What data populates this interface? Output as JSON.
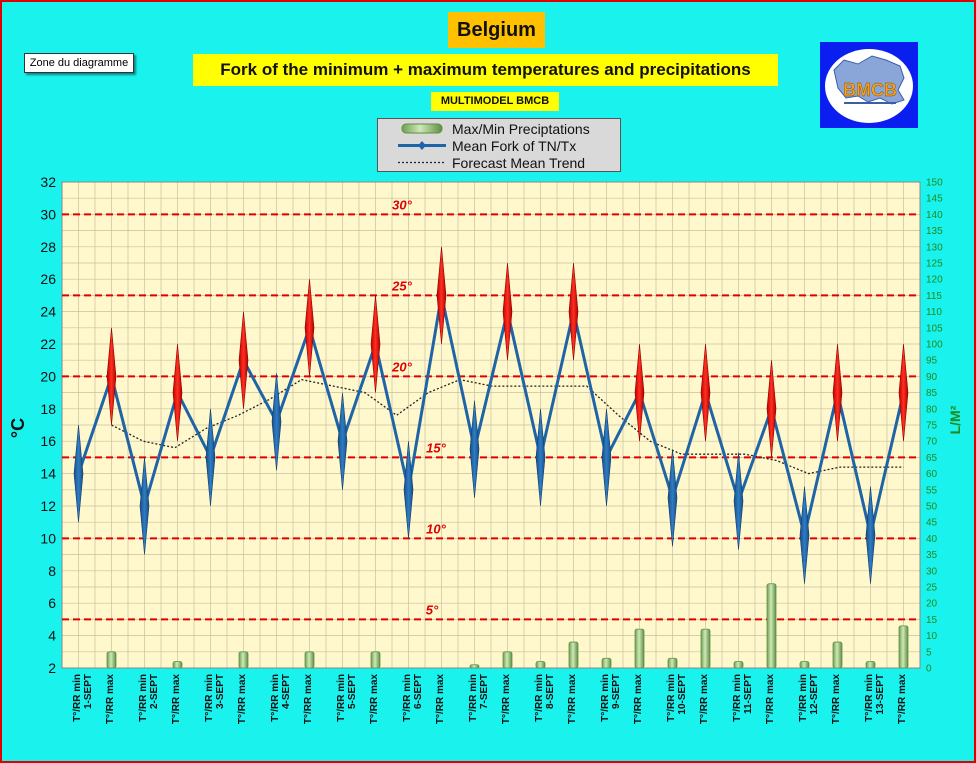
{
  "header": {
    "title": "Belgium",
    "subtitle": "Fork of the minimum + maximum temperatures and precipitations",
    "model": "MULTIMODEL BMCB",
    "zone_label": "Zone du diagramme"
  },
  "logo": {
    "text": "BMCB",
    "icon": "belgium-map-logo-icon",
    "color": "#f5a020"
  },
  "legend": {
    "items": [
      {
        "label": "Max/Min Preciptations",
        "symbol": "green-bar-icon"
      },
      {
        "label": "Mean Fork of TN/Tx",
        "symbol": "blue-line-diamond-icon"
      },
      {
        "label": "Forecast Mean Trend",
        "symbol": "dotted-line-icon"
      }
    ]
  },
  "colors": {
    "background": "#1af2ee",
    "plot_background": "#fff8cc",
    "frame_border": "#e00000",
    "temp_line": "#1f64a6",
    "min_marker": "#1f64a6",
    "max_marker": "#e01010",
    "precip_bar": "#a9d18e",
    "threshold_line": "#e00000",
    "threshold_label": "#e00000",
    "right_axis_label": "#1e8a1e"
  },
  "chart_data": {
    "type": "line",
    "ylabel": "°C",
    "y2label": "L/M²",
    "ylim": [
      2,
      32
    ],
    "yticks": [
      2,
      4,
      6,
      8,
      10,
      12,
      14,
      16,
      18,
      20,
      22,
      24,
      26,
      28,
      30,
      32
    ],
    "y2lim": [
      0,
      150
    ],
    "y2ticks": [
      0,
      5,
      10,
      15,
      20,
      25,
      30,
      35,
      40,
      45,
      50,
      55,
      60,
      65,
      70,
      75,
      80,
      85,
      90,
      95,
      100,
      105,
      110,
      115,
      120,
      125,
      130,
      135,
      140,
      145,
      150
    ],
    "grid": true,
    "categories": [
      {
        "main": "T°/RR min",
        "day": "1-SEPT"
      },
      {
        "main": "T°/RR max",
        "day": ""
      },
      {
        "main": "T°/RR min",
        "day": "2-SEPT"
      },
      {
        "main": "T°/RR max",
        "day": ""
      },
      {
        "main": "T°/RR min",
        "day": "3-SEPT"
      },
      {
        "main": "T°/RR max",
        "day": ""
      },
      {
        "main": "T°/RR min",
        "day": "4-SEPT"
      },
      {
        "main": "T°/RR max",
        "day": ""
      },
      {
        "main": "T°/RR min",
        "day": "5-SEPT"
      },
      {
        "main": "T°/RR max",
        "day": ""
      },
      {
        "main": "T°/RR min",
        "day": "6-SEPT"
      },
      {
        "main": "T°/RR max",
        "day": ""
      },
      {
        "main": "T°/RR min",
        "day": "7-SEPT"
      },
      {
        "main": "T°/RR max",
        "day": ""
      },
      {
        "main": "T°/RR min",
        "day": "8-SEPT"
      },
      {
        "main": "T°/RR max",
        "day": ""
      },
      {
        "main": "T°/RR min",
        "day": "9-SEPT"
      },
      {
        "main": "T°/RR max",
        "day": ""
      },
      {
        "main": "T°/RR min",
        "day": "10-SEPT"
      },
      {
        "main": "T°/RR max",
        "day": ""
      },
      {
        "main": "T°/RR min",
        "day": "11-SEPT"
      },
      {
        "main": "T°/RR max",
        "day": ""
      },
      {
        "main": "T°/RR min",
        "day": "12-SEPT"
      },
      {
        "main": "T°/RR max",
        "day": ""
      },
      {
        "main": "T°/RR min",
        "day": "13-SEPT"
      },
      {
        "main": "T°/RR max",
        "day": ""
      }
    ],
    "thresholds": [
      {
        "value": 30,
        "label": "30°"
      },
      {
        "value": 25,
        "label": "25°"
      },
      {
        "value": 20,
        "label": "20°"
      },
      {
        "value": 15,
        "label": "15°"
      },
      {
        "value": 10,
        "label": "10°"
      },
      {
        "value": 5,
        "label": "5°"
      }
    ],
    "series": [
      {
        "name": "Mean Fork of TN/Tx",
        "type": "line",
        "values": [
          14,
          20,
          12,
          19,
          15,
          21,
          17.2,
          23,
          16,
          22,
          13,
          25,
          15.5,
          24,
          15,
          24,
          15,
          19,
          12.5,
          19,
          12.3,
          18,
          10.2,
          19,
          10.2,
          19
        ]
      },
      {
        "name": "Forecast Mean Trend",
        "type": "line",
        "x_start": 1,
        "values": [
          17,
          16,
          15.6,
          16.8,
          17.6,
          18.6,
          19.8,
          19.4,
          19,
          17.6,
          19,
          19.8,
          19.4,
          19.4,
          19.4,
          19.4,
          17.6,
          16,
          15.2,
          15.2,
          15.2,
          14.8,
          14,
          14.4,
          14.4,
          14.4
        ]
      },
      {
        "name": "Max/Min Preciptations",
        "type": "bar",
        "axis": "right",
        "values": [
          0,
          5,
          0,
          2,
          0,
          5,
          0,
          5,
          0,
          5,
          0,
          0,
          1,
          5,
          2,
          8,
          3,
          12,
          3,
          12,
          2,
          26,
          2,
          8,
          2,
          13
        ]
      }
    ]
  }
}
